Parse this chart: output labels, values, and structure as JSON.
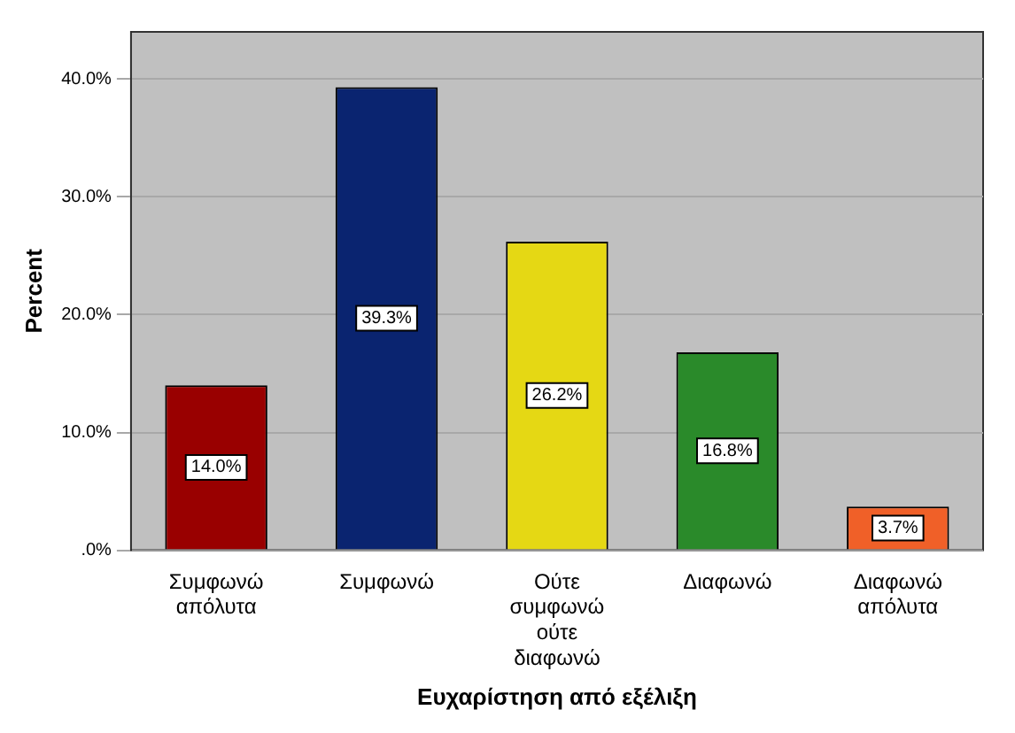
{
  "chart_data": {
    "type": "bar",
    "xlabel": "Ευχαρίστηση από εξέλιξη",
    "ylabel": "Percent",
    "categories": [
      "Συμφωνώ απόλυτα",
      "Συμφωνώ",
      "Ούτε συμφωνώ ούτε διαφωνώ",
      "Διαφωνώ",
      "Διαφωνώ απόλυτα"
    ],
    "values": [
      14.0,
      39.3,
      26.2,
      16.8,
      3.7
    ],
    "colors": [
      "#990000",
      "#0a2470",
      "#e5d814",
      "#2a8a2a",
      "#f06028"
    ],
    "value_labels": [
      "14.0%",
      "39.3%",
      "26.2%",
      "16.8%",
      "3.7%"
    ],
    "ylim": [
      0,
      44
    ],
    "yticks": [
      {
        "value": 0,
        "label": ".0%"
      },
      {
        "value": 10,
        "label": "10.0%"
      },
      {
        "value": 20,
        "label": "20.0%"
      },
      {
        "value": 30,
        "label": "30.0%"
      },
      {
        "value": 40,
        "label": "40.0%"
      }
    ],
    "grid": "y",
    "legend": false
  }
}
